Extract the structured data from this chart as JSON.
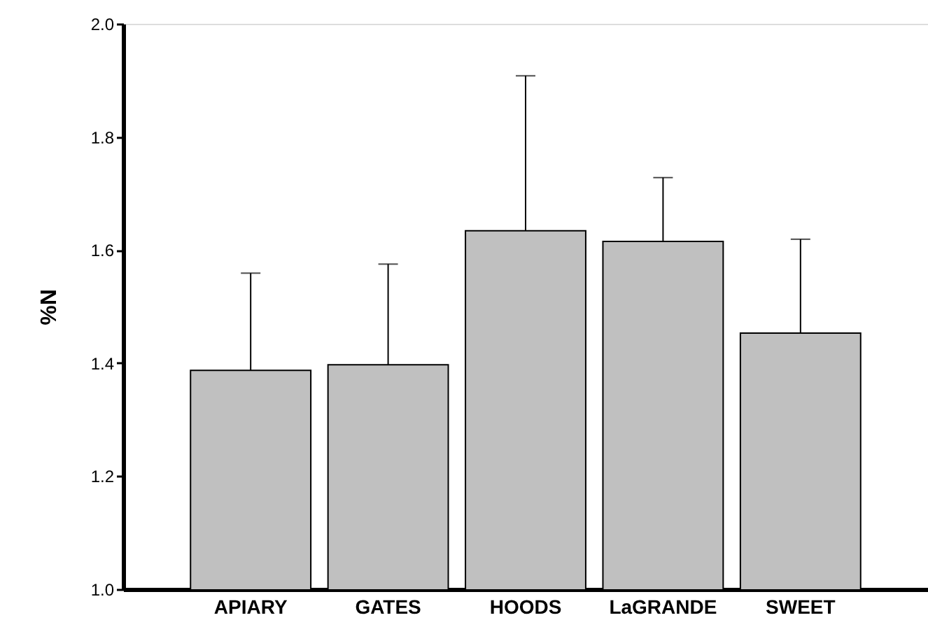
{
  "chart_data": {
    "type": "bar",
    "ylabel": "%N",
    "categories": [
      "APIARY",
      "GATES",
      "HOODS",
      "LaGRANDE",
      "SWEET"
    ],
    "values": [
      1.387,
      1.397,
      1.634,
      1.615,
      1.453
    ],
    "errors": [
      [
        1.387,
        1.559
      ],
      [
        1.397,
        1.575
      ],
      [
        1.634,
        1.908
      ],
      [
        1.615,
        1.728
      ],
      [
        1.453,
        1.619
      ]
    ],
    "color": "#c0c0c0",
    "ylim": [
      1.0,
      2.0
    ],
    "yticks": [
      {
        "value": 1.0,
        "label": "1.0"
      },
      {
        "value": 1.2,
        "label": "1.2"
      },
      {
        "value": 1.4,
        "label": "1.4"
      },
      {
        "value": 1.6,
        "label": "1.6"
      },
      {
        "value": 1.8,
        "label": "1.8"
      },
      {
        "value": 2.0,
        "label": "2.0"
      }
    ],
    "grid": false
  }
}
